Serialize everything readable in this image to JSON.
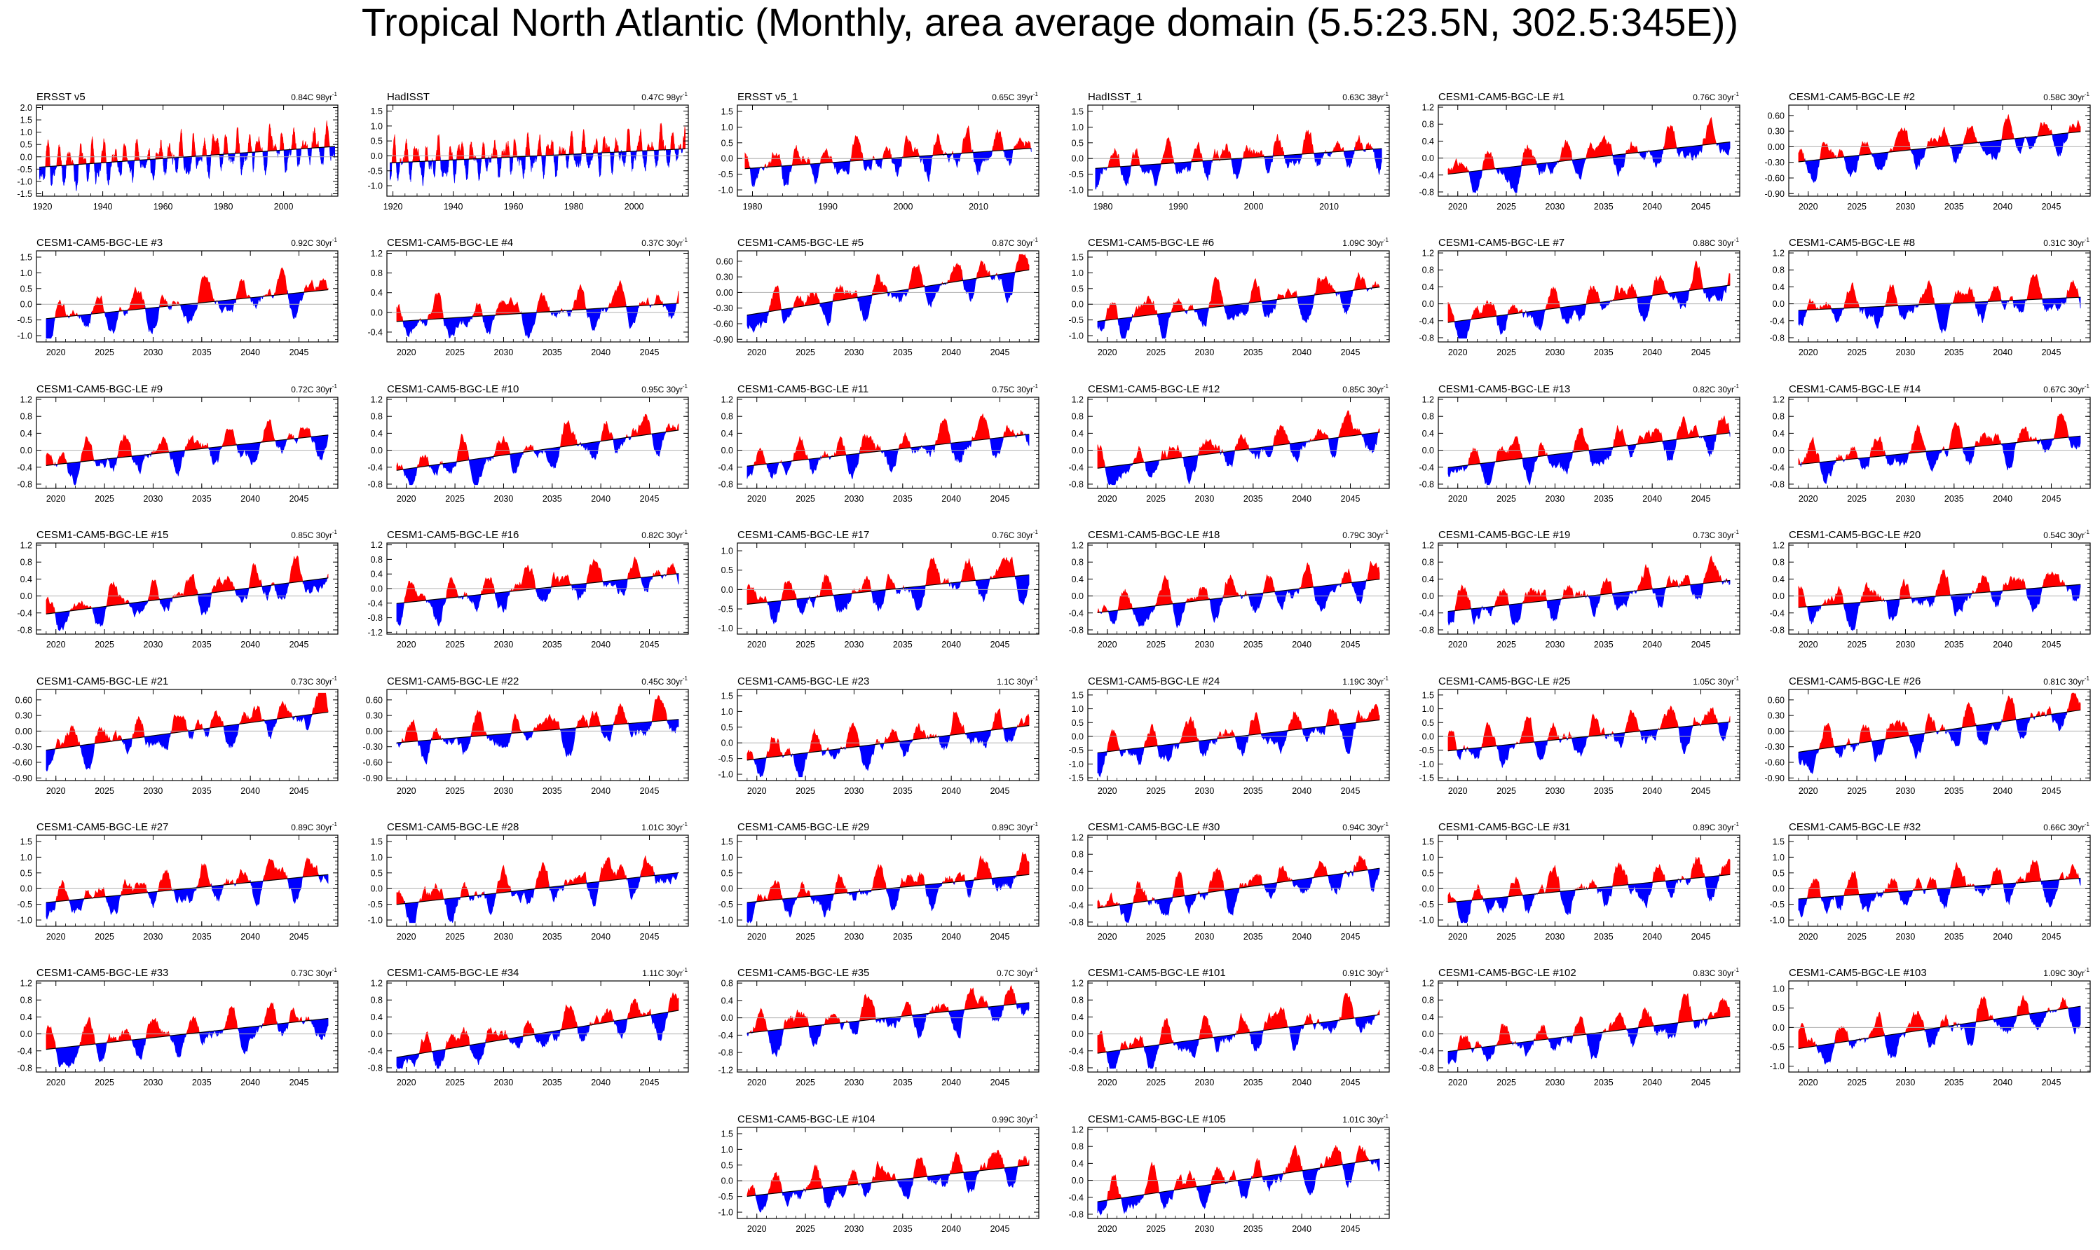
{
  "title": "Tropical North Atlantic (Monthly, area average domain (5.5:23.5N, 302.5:345E))",
  "colors": {
    "positive": "#ff0000",
    "negative": "#0000ff",
    "trend": "#000000",
    "zero_line": "#b0b0b0"
  },
  "chart_data": [
    {
      "type": "area",
      "label": "ERSST v5",
      "trend": "0.84C 98yr",
      "xticks": [
        "1920",
        "1940",
        "1960",
        "1980",
        "2000"
      ],
      "yticks": [
        "2.0",
        "1.5",
        "1.0",
        "0.5",
        "0.0",
        "-0.5",
        "-1.0",
        "-1.5"
      ],
      "xlim": [
        1918,
        2018
      ],
      "ylim": [
        -1.6,
        2.1
      ]
    },
    {
      "type": "area",
      "label": "HadISST",
      "trend": "0.47C 98yr",
      "xticks": [
        "1920",
        "1940",
        "1960",
        "1980",
        "2000"
      ],
      "yticks": [
        "1.5",
        "1.0",
        "0.5",
        "0.0",
        "-0.5",
        "-1.0"
      ],
      "xlim": [
        1918,
        2018
      ],
      "ylim": [
        -1.35,
        1.7
      ]
    },
    {
      "type": "area",
      "label": "ERSST v5_1",
      "trend": "0.65C 39yr",
      "xticks": [
        "1980",
        "1990",
        "2000",
        "2010"
      ],
      "yticks": [
        "1.5",
        "1.0",
        "0.5",
        "0.0",
        "-0.5",
        "-1.0"
      ],
      "xlim": [
        1978,
        2018
      ],
      "ylim": [
        -1.2,
        1.7
      ]
    },
    {
      "type": "area",
      "label": "HadISST_1",
      "trend": "0.63C 38yr",
      "xticks": [
        "1980",
        "1990",
        "2000",
        "2010"
      ],
      "yticks": [
        "1.5",
        "1.0",
        "0.5",
        "0.0",
        "-0.5",
        "-1.0"
      ],
      "xlim": [
        1978,
        2018
      ],
      "ylim": [
        -1.2,
        1.7
      ]
    },
    {
      "type": "area",
      "label": "CESM1-CAM5-BGC-LE #1",
      "trend": "0.76C 30yr",
      "xticks": [
        "2020",
        "2025",
        "2030",
        "2035",
        "2040",
        "2045"
      ],
      "yticks": [
        "1.2",
        "0.8",
        "0.4",
        "0.0",
        "-0.4",
        "-0.8"
      ],
      "xlim": [
        2018,
        2049
      ],
      "ylim": [
        -0.9,
        1.25
      ]
    },
    {
      "type": "area",
      "label": "CESM1-CAM5-BGC-LE #2",
      "trend": "0.58C 30yr",
      "xticks": [
        "2020",
        "2025",
        "2030",
        "2035",
        "2040",
        "2045"
      ],
      "yticks": [
        "0.60",
        "0.30",
        "0.00",
        "-0.30",
        "-0.60",
        "-0.90"
      ],
      "xlim": [
        2018,
        2049
      ],
      "ylim": [
        -0.95,
        0.8
      ]
    },
    {
      "type": "area",
      "label": "CESM1-CAM5-BGC-LE #3",
      "trend": "0.92C 30yr",
      "xticks": [
        "2020",
        "2025",
        "2030",
        "2035",
        "2040",
        "2045"
      ],
      "yticks": [
        "1.5",
        "1.0",
        "0.5",
        "0.0",
        "-0.5",
        "-1.0"
      ],
      "xlim": [
        2018,
        2049
      ],
      "ylim": [
        -1.2,
        1.7
      ]
    },
    {
      "type": "area",
      "label": "CESM1-CAM5-BGC-LE #4",
      "trend": "0.37C 30yr",
      "xticks": [
        "2020",
        "2025",
        "2030",
        "2035",
        "2040",
        "2045"
      ],
      "yticks": [
        "1.2",
        "0.8",
        "0.4",
        "0.0",
        "-0.4"
      ],
      "xlim": [
        2018,
        2049
      ],
      "ylim": [
        -0.6,
        1.25
      ]
    },
    {
      "type": "area",
      "label": "CESM1-CAM5-BGC-LE #5",
      "trend": "0.87C 30yr",
      "xticks": [
        "2020",
        "2025",
        "2030",
        "2035",
        "2040",
        "2045"
      ],
      "yticks": [
        "0.60",
        "0.30",
        "0.00",
        "-0.30",
        "-0.60",
        "-0.90"
      ],
      "xlim": [
        2018,
        2049
      ],
      "ylim": [
        -0.95,
        0.8
      ]
    },
    {
      "type": "area",
      "label": "CESM1-CAM5-BGC-LE #6",
      "trend": "1.09C 30yr",
      "xticks": [
        "2020",
        "2025",
        "2030",
        "2035",
        "2040",
        "2045"
      ],
      "yticks": [
        "1.5",
        "1.0",
        "0.5",
        "0.0",
        "-0.5",
        "-1.0"
      ],
      "xlim": [
        2018,
        2049
      ],
      "ylim": [
        -1.2,
        1.7
      ]
    },
    {
      "type": "area",
      "label": "CESM1-CAM5-BGC-LE #7",
      "trend": "0.88C 30yr",
      "xticks": [
        "2020",
        "2025",
        "2030",
        "2035",
        "2040",
        "2045"
      ],
      "yticks": [
        "1.2",
        "0.8",
        "0.4",
        "0.0",
        "-0.4",
        "-0.8"
      ],
      "xlim": [
        2018,
        2049
      ],
      "ylim": [
        -0.9,
        1.25
      ]
    },
    {
      "type": "area",
      "label": "CESM1-CAM5-BGC-LE #8",
      "trend": "0.31C 30yr",
      "xticks": [
        "2020",
        "2025",
        "2030",
        "2035",
        "2040",
        "2045"
      ],
      "yticks": [
        "1.2",
        "0.8",
        "0.4",
        "0.0",
        "-0.4",
        "-0.8"
      ],
      "xlim": [
        2018,
        2049
      ],
      "ylim": [
        -0.9,
        1.25
      ]
    },
    {
      "type": "area",
      "label": "CESM1-CAM5-BGC-LE #9",
      "trend": "0.72C 30yr",
      "xticks": [
        "2020",
        "2025",
        "2030",
        "2035",
        "2040",
        "2045"
      ],
      "yticks": [
        "1.2",
        "0.8",
        "0.4",
        "0.0",
        "-0.4",
        "-0.8"
      ],
      "xlim": [
        2018,
        2049
      ],
      "ylim": [
        -0.9,
        1.25
      ]
    },
    {
      "type": "area",
      "label": "CESM1-CAM5-BGC-LE #10",
      "trend": "0.95C 30yr",
      "xticks": [
        "2020",
        "2025",
        "2030",
        "2035",
        "2040",
        "2045"
      ],
      "yticks": [
        "1.2",
        "0.8",
        "0.4",
        "0.0",
        "-0.4",
        "-0.8"
      ],
      "xlim": [
        2018,
        2049
      ],
      "ylim": [
        -0.9,
        1.25
      ]
    },
    {
      "type": "area",
      "label": "CESM1-CAM5-BGC-LE #11",
      "trend": "0.75C 30yr",
      "xticks": [
        "2020",
        "2025",
        "2030",
        "2035",
        "2040",
        "2045"
      ],
      "yticks": [
        "1.2",
        "0.8",
        "0.4",
        "0.0",
        "-0.4",
        "-0.8"
      ],
      "xlim": [
        2018,
        2049
      ],
      "ylim": [
        -0.9,
        1.25
      ]
    },
    {
      "type": "area",
      "label": "CESM1-CAM5-BGC-LE #12",
      "trend": "0.85C 30yr",
      "xticks": [
        "2020",
        "2025",
        "2030",
        "2035",
        "2040",
        "2045"
      ],
      "yticks": [
        "1.2",
        "0.8",
        "0.4",
        "0.0",
        "-0.4",
        "-0.8"
      ],
      "xlim": [
        2018,
        2049
      ],
      "ylim": [
        -0.9,
        1.25
      ]
    },
    {
      "type": "area",
      "label": "CESM1-CAM5-BGC-LE #13",
      "trend": "0.82C 30yr",
      "xticks": [
        "2020",
        "2025",
        "2030",
        "2035",
        "2040",
        "2045"
      ],
      "yticks": [
        "1.2",
        "0.8",
        "0.4",
        "0.0",
        "-0.4",
        "-0.8"
      ],
      "xlim": [
        2018,
        2049
      ],
      "ylim": [
        -0.9,
        1.25
      ]
    },
    {
      "type": "area",
      "label": "CESM1-CAM5-BGC-LE #14",
      "trend": "0.67C 30yr",
      "xticks": [
        "2020",
        "2025",
        "2030",
        "2035",
        "2040",
        "2045"
      ],
      "yticks": [
        "1.2",
        "0.8",
        "0.4",
        "0.0",
        "-0.4",
        "-0.8"
      ],
      "xlim": [
        2018,
        2049
      ],
      "ylim": [
        -0.9,
        1.25
      ]
    },
    {
      "type": "area",
      "label": "CESM1-CAM5-BGC-LE #15",
      "trend": "0.85C 30yr",
      "xticks": [
        "2020",
        "2025",
        "2030",
        "2035",
        "2040",
        "2045"
      ],
      "yticks": [
        "1.2",
        "0.8",
        "0.4",
        "0.0",
        "-0.4",
        "-0.8"
      ],
      "xlim": [
        2018,
        2049
      ],
      "ylim": [
        -0.9,
        1.25
      ]
    },
    {
      "type": "area",
      "label": "CESM1-CAM5-BGC-LE #16",
      "trend": "0.82C 30yr",
      "xticks": [
        "2020",
        "2025",
        "2030",
        "2035",
        "2040",
        "2045"
      ],
      "yticks": [
        "1.2",
        "0.8",
        "0.4",
        "0.0",
        "-0.4",
        "-0.8",
        "-1.2"
      ],
      "xlim": [
        2018,
        2049
      ],
      "ylim": [
        -1.25,
        1.25
      ]
    },
    {
      "type": "area",
      "label": "CESM1-CAM5-BGC-LE #17",
      "trend": "0.76C 30yr",
      "xticks": [
        "2020",
        "2025",
        "2030",
        "2035",
        "2040",
        "2045"
      ],
      "yticks": [
        "1.0",
        "0.5",
        "0.0",
        "-0.5",
        "-1.0"
      ],
      "xlim": [
        2018,
        2049
      ],
      "ylim": [
        -1.15,
        1.2
      ]
    },
    {
      "type": "area",
      "label": "CESM1-CAM5-BGC-LE #18",
      "trend": "0.79C 30yr",
      "xticks": [
        "2020",
        "2025",
        "2030",
        "2035",
        "2040",
        "2045"
      ],
      "yticks": [
        "1.2",
        "0.8",
        "0.4",
        "0.0",
        "-0.4",
        "-0.8"
      ],
      "xlim": [
        2018,
        2049
      ],
      "ylim": [
        -0.9,
        1.25
      ]
    },
    {
      "type": "area",
      "label": "CESM1-CAM5-BGC-LE #19",
      "trend": "0.73C 30yr",
      "xticks": [
        "2020",
        "2025",
        "2030",
        "2035",
        "2040",
        "2045"
      ],
      "yticks": [
        "1.2",
        "0.8",
        "0.4",
        "0.0",
        "-0.4",
        "-0.8"
      ],
      "xlim": [
        2018,
        2049
      ],
      "ylim": [
        -0.9,
        1.25
      ]
    },
    {
      "type": "area",
      "label": "CESM1-CAM5-BGC-LE #20",
      "trend": "0.54C 30yr",
      "xticks": [
        "2020",
        "2025",
        "2030",
        "2035",
        "2040",
        "2045"
      ],
      "yticks": [
        "1.2",
        "0.8",
        "0.4",
        "0.0",
        "-0.4",
        "-0.8"
      ],
      "xlim": [
        2018,
        2049
      ],
      "ylim": [
        -0.9,
        1.25
      ]
    },
    {
      "type": "area",
      "label": "CESM1-CAM5-BGC-LE #21",
      "trend": "0.73C 30yr",
      "xticks": [
        "2020",
        "2025",
        "2030",
        "2035",
        "2040",
        "2045"
      ],
      "yticks": [
        "0.60",
        "0.30",
        "0.00",
        "-0.30",
        "-0.60",
        "-0.90"
      ],
      "xlim": [
        2018,
        2049
      ],
      "ylim": [
        -0.95,
        0.8
      ]
    },
    {
      "type": "area",
      "label": "CESM1-CAM5-BGC-LE #22",
      "trend": "0.45C 30yr",
      "xticks": [
        "2020",
        "2025",
        "2030",
        "2035",
        "2040",
        "2045"
      ],
      "yticks": [
        "0.60",
        "0.30",
        "0.00",
        "-0.30",
        "-0.60",
        "-0.90"
      ],
      "xlim": [
        2018,
        2049
      ],
      "ylim": [
        -0.95,
        0.8
      ]
    },
    {
      "type": "area",
      "label": "CESM1-CAM5-BGC-LE #23",
      "trend": "1.1C 30yr",
      "xticks": [
        "2020",
        "2025",
        "2030",
        "2035",
        "2040",
        "2045"
      ],
      "yticks": [
        "1.5",
        "1.0",
        "0.5",
        "0.0",
        "-0.5",
        "-1.0"
      ],
      "xlim": [
        2018,
        2049
      ],
      "ylim": [
        -1.2,
        1.7
      ]
    },
    {
      "type": "area",
      "label": "CESM1-CAM5-BGC-LE #24",
      "trend": "1.19C 30yr",
      "xticks": [
        "2020",
        "2025",
        "2030",
        "2035",
        "2040",
        "2045"
      ],
      "yticks": [
        "1.5",
        "1.0",
        "0.5",
        "0.0",
        "-0.5",
        "-1.0",
        "-1.5"
      ],
      "xlim": [
        2018,
        2049
      ],
      "ylim": [
        -1.6,
        1.7
      ]
    },
    {
      "type": "area",
      "label": "CESM1-CAM5-BGC-LE #25",
      "trend": "1.05C 30yr",
      "xticks": [
        "2020",
        "2025",
        "2030",
        "2035",
        "2040",
        "2045"
      ],
      "yticks": [
        "1.5",
        "1.0",
        "0.5",
        "0.0",
        "-0.5",
        "-1.0",
        "-1.5"
      ],
      "xlim": [
        2018,
        2049
      ],
      "ylim": [
        -1.6,
        1.7
      ]
    },
    {
      "type": "area",
      "label": "CESM1-CAM5-BGC-LE #26",
      "trend": "0.81C 30yr",
      "xticks": [
        "2020",
        "2025",
        "2030",
        "2035",
        "2040",
        "2045"
      ],
      "yticks": [
        "0.60",
        "0.30",
        "0.00",
        "-0.30",
        "-0.60",
        "-0.90"
      ],
      "xlim": [
        2018,
        2049
      ],
      "ylim": [
        -0.95,
        0.8
      ]
    },
    {
      "type": "area",
      "label": "CESM1-CAM5-BGC-LE #27",
      "trend": "0.89C 30yr",
      "xticks": [
        "2020",
        "2025",
        "2030",
        "2035",
        "2040",
        "2045"
      ],
      "yticks": [
        "1.5",
        "1.0",
        "0.5",
        "0.0",
        "-0.5",
        "-1.0"
      ],
      "xlim": [
        2018,
        2049
      ],
      "ylim": [
        -1.2,
        1.7
      ]
    },
    {
      "type": "area",
      "label": "CESM1-CAM5-BGC-LE #28",
      "trend": "1.01C 30yr",
      "xticks": [
        "2020",
        "2025",
        "2030",
        "2035",
        "2040",
        "2045"
      ],
      "yticks": [
        "1.5",
        "1.0",
        "0.5",
        "0.0",
        "-0.5",
        "-1.0"
      ],
      "xlim": [
        2018,
        2049
      ],
      "ylim": [
        -1.2,
        1.7
      ]
    },
    {
      "type": "area",
      "label": "CESM1-CAM5-BGC-LE #29",
      "trend": "0.89C 30yr",
      "xticks": [
        "2020",
        "2025",
        "2030",
        "2035",
        "2040",
        "2045"
      ],
      "yticks": [
        "1.5",
        "1.0",
        "0.5",
        "0.0",
        "-0.5",
        "-1.0"
      ],
      "xlim": [
        2018,
        2049
      ],
      "ylim": [
        -1.2,
        1.7
      ]
    },
    {
      "type": "area",
      "label": "CESM1-CAM5-BGC-LE #30",
      "trend": "0.94C 30yr",
      "xticks": [
        "2020",
        "2025",
        "2030",
        "2035",
        "2040",
        "2045"
      ],
      "yticks": [
        "1.2",
        "0.8",
        "0.4",
        "0.0",
        "-0.4",
        "-0.8"
      ],
      "xlim": [
        2018,
        2049
      ],
      "ylim": [
        -0.9,
        1.25
      ]
    },
    {
      "type": "area",
      "label": "CESM1-CAM5-BGC-LE #31",
      "trend": "0.89C 30yr",
      "xticks": [
        "2020",
        "2025",
        "2030",
        "2035",
        "2040",
        "2045"
      ],
      "yticks": [
        "1.5",
        "1.0",
        "0.5",
        "0.0",
        "-0.5",
        "-1.0"
      ],
      "xlim": [
        2018,
        2049
      ],
      "ylim": [
        -1.2,
        1.7
      ]
    },
    {
      "type": "area",
      "label": "CESM1-CAM5-BGC-LE #32",
      "trend": "0.66C 30yr",
      "xticks": [
        "2020",
        "2025",
        "2030",
        "2035",
        "2040",
        "2045"
      ],
      "yticks": [
        "1.5",
        "1.0",
        "0.5",
        "0.0",
        "-0.5",
        "-1.0"
      ],
      "xlim": [
        2018,
        2049
      ],
      "ylim": [
        -1.2,
        1.7
      ]
    },
    {
      "type": "area",
      "label": "CESM1-CAM5-BGC-LE #33",
      "trend": "0.73C 30yr",
      "xticks": [
        "2020",
        "2025",
        "2030",
        "2035",
        "2040",
        "2045"
      ],
      "yticks": [
        "1.2",
        "0.8",
        "0.4",
        "0.0",
        "-0.4",
        "-0.8"
      ],
      "xlim": [
        2018,
        2049
      ],
      "ylim": [
        -0.9,
        1.25
      ]
    },
    {
      "type": "area",
      "label": "CESM1-CAM5-BGC-LE #34",
      "trend": "1.11C 30yr",
      "xticks": [
        "2020",
        "2025",
        "2030",
        "2035",
        "2040",
        "2045"
      ],
      "yticks": [
        "1.2",
        "0.8",
        "0.4",
        "0.0",
        "-0.4",
        "-0.8"
      ],
      "xlim": [
        2018,
        2049
      ],
      "ylim": [
        -0.9,
        1.25
      ]
    },
    {
      "type": "area",
      "label": "CESM1-CAM5-BGC-LE #35",
      "trend": "0.7C 30yr",
      "xticks": [
        "2020",
        "2025",
        "2030",
        "2035",
        "2040",
        "2045"
      ],
      "yticks": [
        "0.8",
        "0.4",
        "0.0",
        "-0.4",
        "-0.8",
        "-1.2"
      ],
      "xlim": [
        2018,
        2049
      ],
      "ylim": [
        -1.25,
        0.85
      ]
    },
    {
      "type": "area",
      "label": "CESM1-CAM5-BGC-LE #101",
      "trend": "0.91C 30yr",
      "xticks": [
        "2020",
        "2025",
        "2030",
        "2035",
        "2040",
        "2045"
      ],
      "yticks": [
        "1.2",
        "0.8",
        "0.4",
        "0.0",
        "-0.4",
        "-0.8"
      ],
      "xlim": [
        2018,
        2049
      ],
      "ylim": [
        -0.9,
        1.25
      ]
    },
    {
      "type": "area",
      "label": "CESM1-CAM5-BGC-LE #102",
      "trend": "0.83C 30yr",
      "xticks": [
        "2020",
        "2025",
        "2030",
        "2035",
        "2040",
        "2045"
      ],
      "yticks": [
        "1.2",
        "0.8",
        "0.4",
        "0.0",
        "-0.4",
        "-0.8"
      ],
      "xlim": [
        2018,
        2049
      ],
      "ylim": [
        -0.9,
        1.25
      ]
    },
    {
      "type": "area",
      "label": "CESM1-CAM5-BGC-LE #103",
      "trend": "1.09C 30yr",
      "xticks": [
        "2020",
        "2025",
        "2030",
        "2035",
        "2040",
        "2045"
      ],
      "yticks": [
        "1.0",
        "0.5",
        "0.0",
        "-0.5",
        "-1.0"
      ],
      "xlim": [
        2018,
        2049
      ],
      "ylim": [
        -1.15,
        1.2
      ]
    },
    {
      "type": "area",
      "label": "CESM1-CAM5-BGC-LE #104",
      "trend": "0.99C 30yr",
      "xticks": [
        "2020",
        "2025",
        "2030",
        "2035",
        "2040",
        "2045"
      ],
      "yticks": [
        "1.5",
        "1.0",
        "0.5",
        "0.0",
        "-0.5",
        "-1.0"
      ],
      "xlim": [
        2018,
        2049
      ],
      "ylim": [
        -1.2,
        1.7
      ]
    },
    {
      "type": "area",
      "label": "CESM1-CAM5-BGC-LE #105",
      "trend": "1.01C 30yr",
      "xticks": [
        "2020",
        "2025",
        "2030",
        "2035",
        "2040",
        "2045"
      ],
      "yticks": [
        "1.2",
        "0.8",
        "0.4",
        "0.0",
        "-0.4",
        "-0.8"
      ],
      "xlim": [
        2018,
        2049
      ],
      "ylim": [
        -0.9,
        1.25
      ]
    }
  ]
}
